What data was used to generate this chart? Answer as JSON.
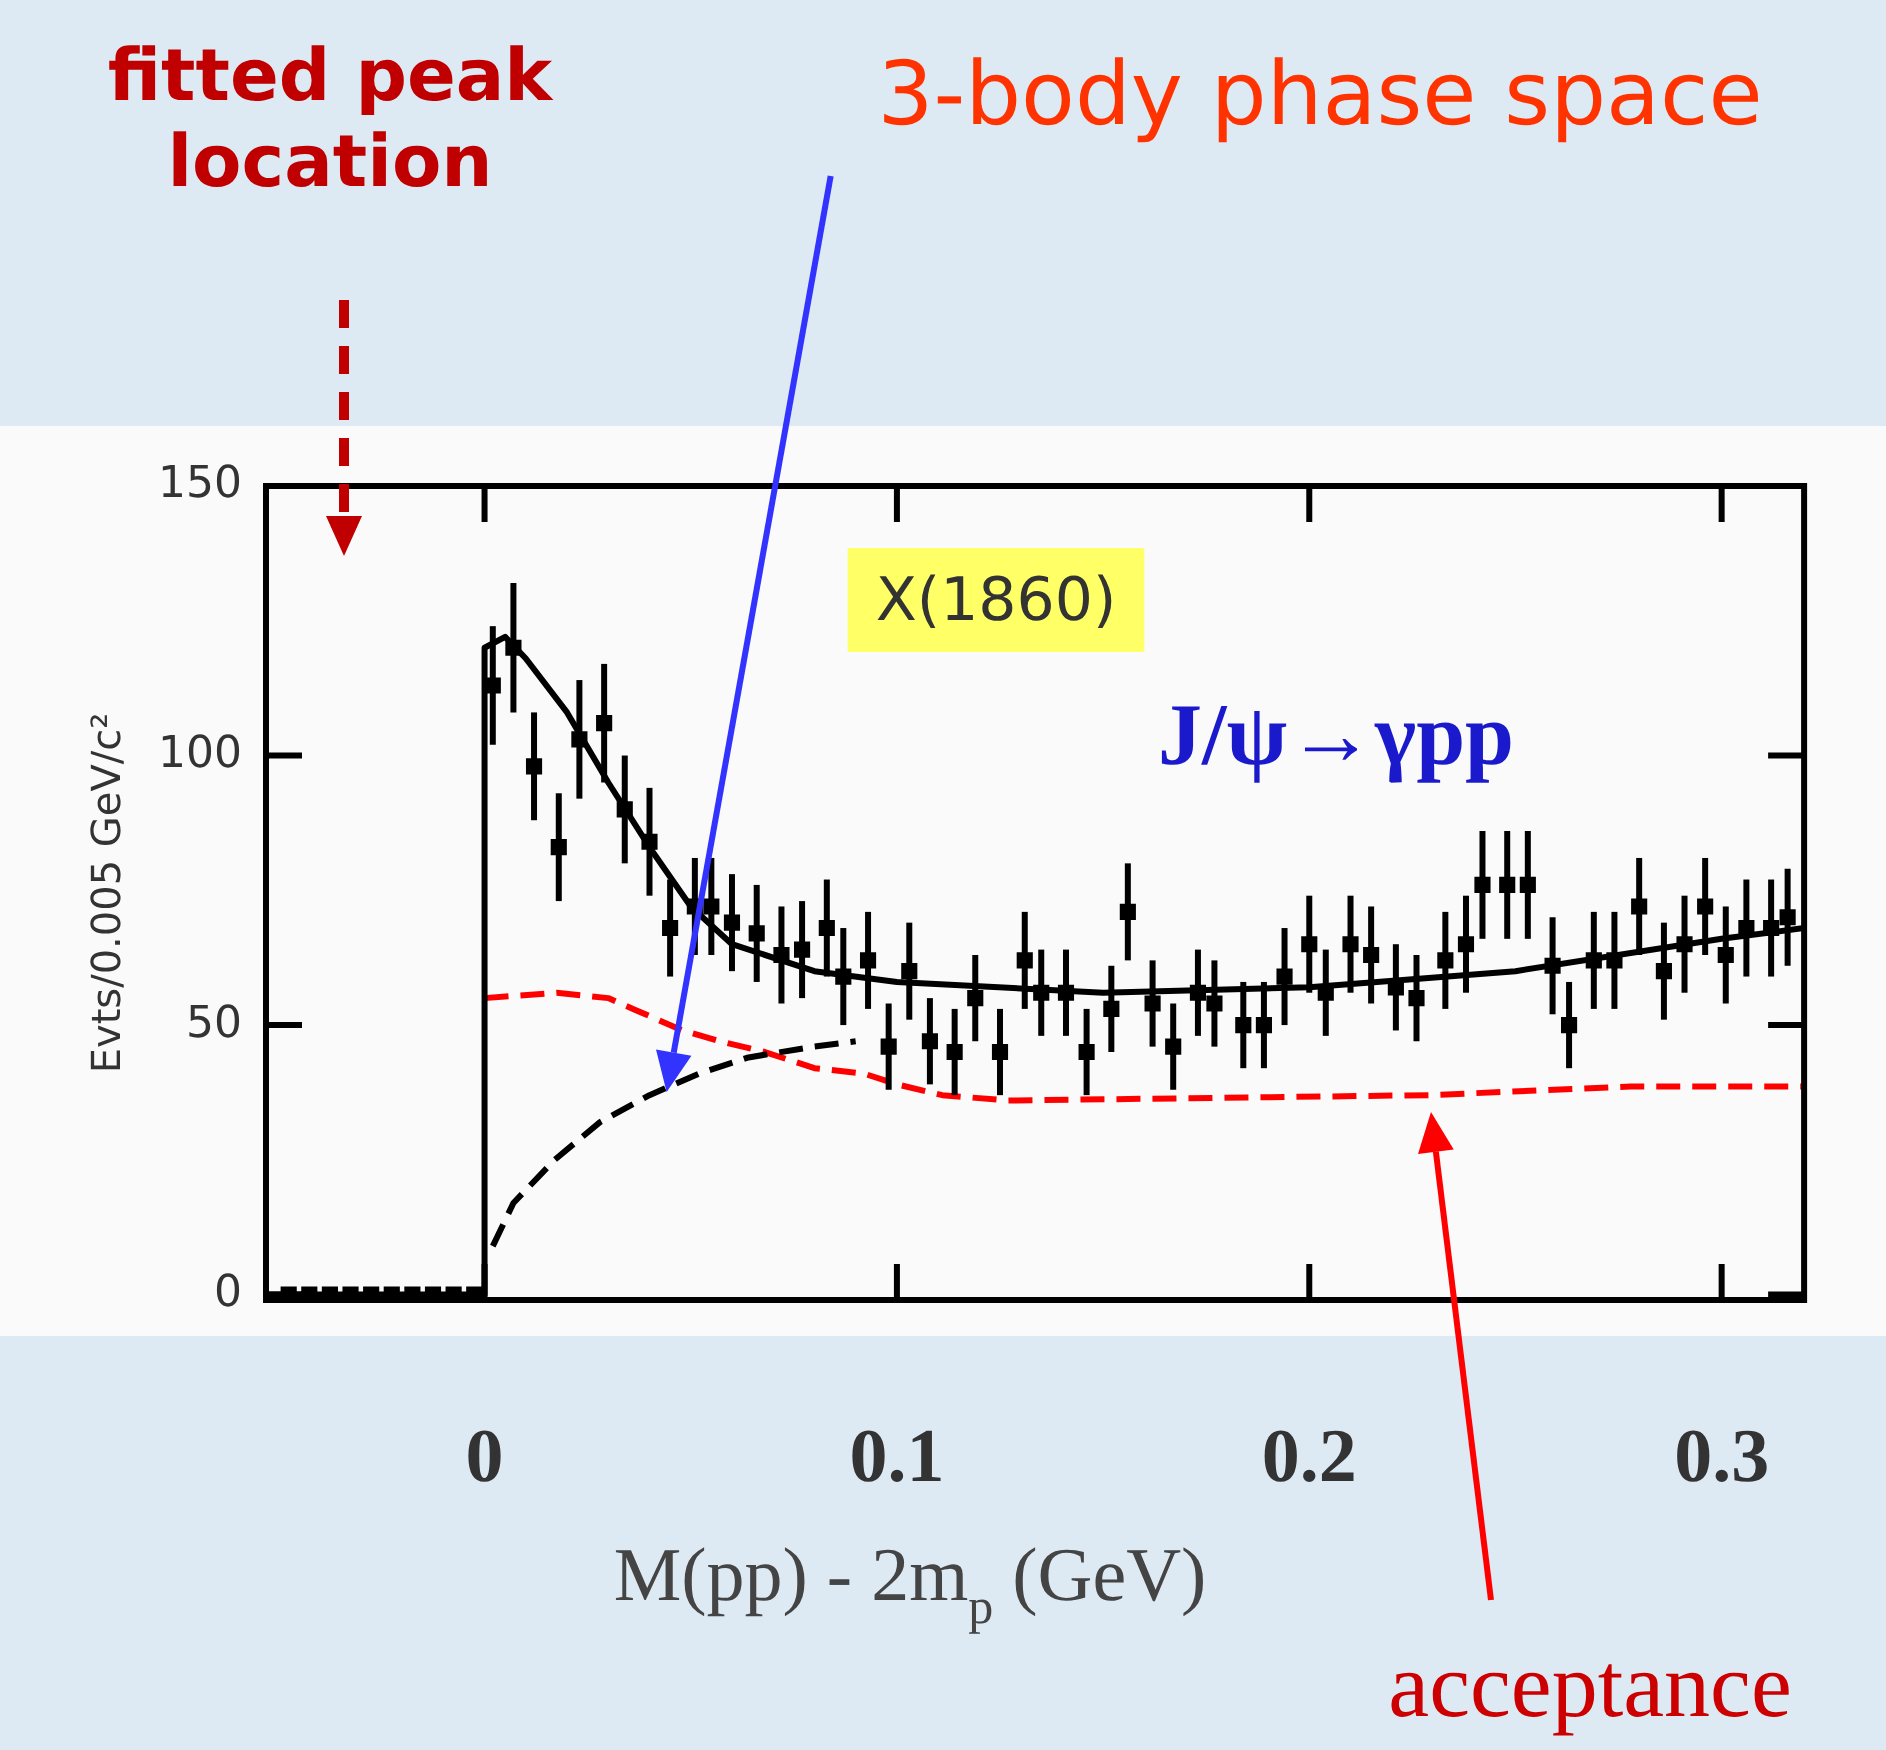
{
  "chart_data": {
    "type": "scatter",
    "xlabel": "M(pp) - 2m$_{p}$ (GeV)",
    "ylabel": "Evts/0.005 GeV/c²",
    "xlim": [
      -0.053,
      0.32
    ],
    "xticks": [
      0,
      0.1,
      0.2,
      0.3
    ],
    "ylim": [
      -1,
      150
    ],
    "yticks": [
      0,
      50,
      100,
      150
    ],
    "grid": false,
    "legend": false,
    "annotations": [
      "fitted peak location",
      "3-body phase space",
      "X(1860)",
      "J/ψ→γpp",
      "acceptance"
    ],
    "series": [
      {
        "type": "scatter",
        "color": "#000000",
        "marker": "square",
        "x": [
          -0.0475,
          -0.0425,
          -0.0375,
          -0.0325,
          -0.0275,
          -0.0225,
          -0.0175,
          -0.0125,
          -0.0075,
          -0.0025,
          0.002,
          0.007,
          0.012,
          0.018,
          0.023,
          0.029,
          0.034,
          0.04,
          0.045,
          0.051,
          0.055,
          0.06,
          0.066,
          0.072,
          0.077,
          0.083,
          0.087,
          0.093,
          0.098,
          0.103,
          0.108,
          0.114,
          0.119,
          0.125,
          0.131,
          0.135,
          0.141,
          0.146,
          0.152,
          0.156,
          0.162,
          0.167,
          0.173,
          0.177,
          0.184,
          0.189,
          0.194,
          0.2,
          0.204,
          0.21,
          0.215,
          0.221,
          0.226,
          0.233,
          0.238,
          0.242,
          0.248,
          0.253,
          0.259,
          0.263,
          0.269,
          0.274,
          0.28,
          0.286,
          0.291,
          0.296,
          0.301,
          0.306,
          0.312,
          0.316
        ],
        "values": [
          0,
          0,
          0,
          0,
          0,
          0,
          0,
          0,
          0,
          0,
          113,
          120,
          98,
          83,
          103,
          106,
          90,
          84,
          68,
          72,
          72,
          69,
          67,
          63,
          64,
          68,
          59,
          62,
          46,
          60,
          47,
          45,
          55,
          45,
          62,
          56,
          56,
          45,
          53,
          71,
          54,
          46,
          56,
          54,
          50,
          50,
          59,
          65,
          56,
          65,
          63,
          57,
          55,
          62,
          65,
          76,
          76,
          76,
          61,
          50,
          62,
          62,
          72,
          60,
          65,
          72,
          63,
          68,
          68,
          70
        ],
        "errors": [
          null,
          null,
          null,
          null,
          null,
          null,
          null,
          null,
          null,
          null,
          11,
          12,
          10,
          10,
          11,
          11,
          10,
          10,
          9,
          9,
          9,
          9,
          9,
          9,
          9,
          9,
          9,
          9,
          8,
          9,
          8,
          8,
          8,
          8,
          9,
          8,
          8,
          8,
          8,
          9,
          8,
          8,
          8,
          8,
          8,
          8,
          9,
          9,
          8,
          9,
          9,
          8,
          8,
          9,
          9,
          10,
          10,
          10,
          9,
          8,
          9,
          9,
          9,
          9,
          9,
          9,
          9,
          9,
          9,
          9
        ]
      },
      {
        "type": "line",
        "color": "#000000",
        "line_style": "solid",
        "marker": "none",
        "x": [
          -0.053,
          0,
          0,
          0.005,
          0.01,
          0.02,
          0.03,
          0.04,
          0.05,
          0.06,
          0.08,
          0.1,
          0.15,
          0.2,
          0.25,
          0.3,
          0.32
        ],
        "values": [
          0,
          0,
          120,
          122,
          118,
          108,
          95,
          83,
          72,
          65,
          60,
          58,
          56,
          57,
          60,
          66,
          68
        ]
      },
      {
        "type": "line",
        "color": "#000000",
        "line_style": "dashed",
        "marker": "none",
        "x": [
          0.002,
          0.007,
          0.017,
          0.028,
          0.04,
          0.052,
          0.064,
          0.08,
          0.09
        ],
        "values": [
          9,
          17,
          25,
          32,
          37,
          41,
          44,
          46,
          47
        ]
      },
      {
        "type": "line",
        "color": "#ff0000",
        "line_style": "dashed",
        "marker": "none",
        "x": [
          0,
          0.0175,
          0.03,
          0.036,
          0.042,
          0.048,
          0.057,
          0.068,
          0.08,
          0.092,
          0.1,
          0.111,
          0.127,
          0.229,
          0.278,
          0.32
        ],
        "values": [
          55,
          56,
          55,
          53,
          51,
          49,
          47,
          45,
          42,
          41,
          39,
          37,
          36,
          37,
          38.6,
          38.6
        ]
      }
    ]
  }
}
